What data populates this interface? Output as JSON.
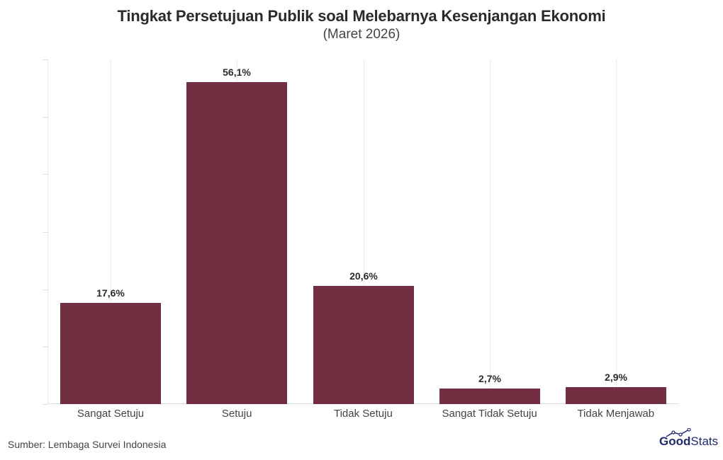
{
  "header": {
    "title": "Tingkat Persetujuan Publik soal Melebarnya Kesenjangan Ekonomi",
    "subtitle": "(Maret 2026)"
  },
  "footer": {
    "source": "Sumber: Lembaga Survei Indonesia",
    "logo_part1": "Good",
    "logo_part2": "Stats"
  },
  "colors": {
    "bar": "#722f42",
    "logo": "#1f2a6b"
  },
  "chart_data": {
    "type": "bar",
    "title": "Tingkat Persetujuan Publik soal Melebarnya Kesenjangan Ekonomi",
    "subtitle": "(Maret 2026)",
    "xlabel": "",
    "ylabel": "",
    "ylim": [
      0,
      60
    ],
    "yticks": [
      "0,0%",
      "10,0%",
      "20,0%",
      "30,0%",
      "40,0%",
      "50,0%",
      "60,0%"
    ],
    "grid": "vertical",
    "legend": "none",
    "categories": [
      "Sangat Setuju",
      "Setuju",
      "Tidak Setuju",
      "Sangat Tidak Setuju",
      "Tidak Menjawab"
    ],
    "values": [
      17.6,
      56.1,
      20.6,
      2.7,
      2.9
    ],
    "value_labels": [
      "17,6%",
      "56,1%",
      "20,6%",
      "2,7%",
      "2,9%"
    ]
  }
}
